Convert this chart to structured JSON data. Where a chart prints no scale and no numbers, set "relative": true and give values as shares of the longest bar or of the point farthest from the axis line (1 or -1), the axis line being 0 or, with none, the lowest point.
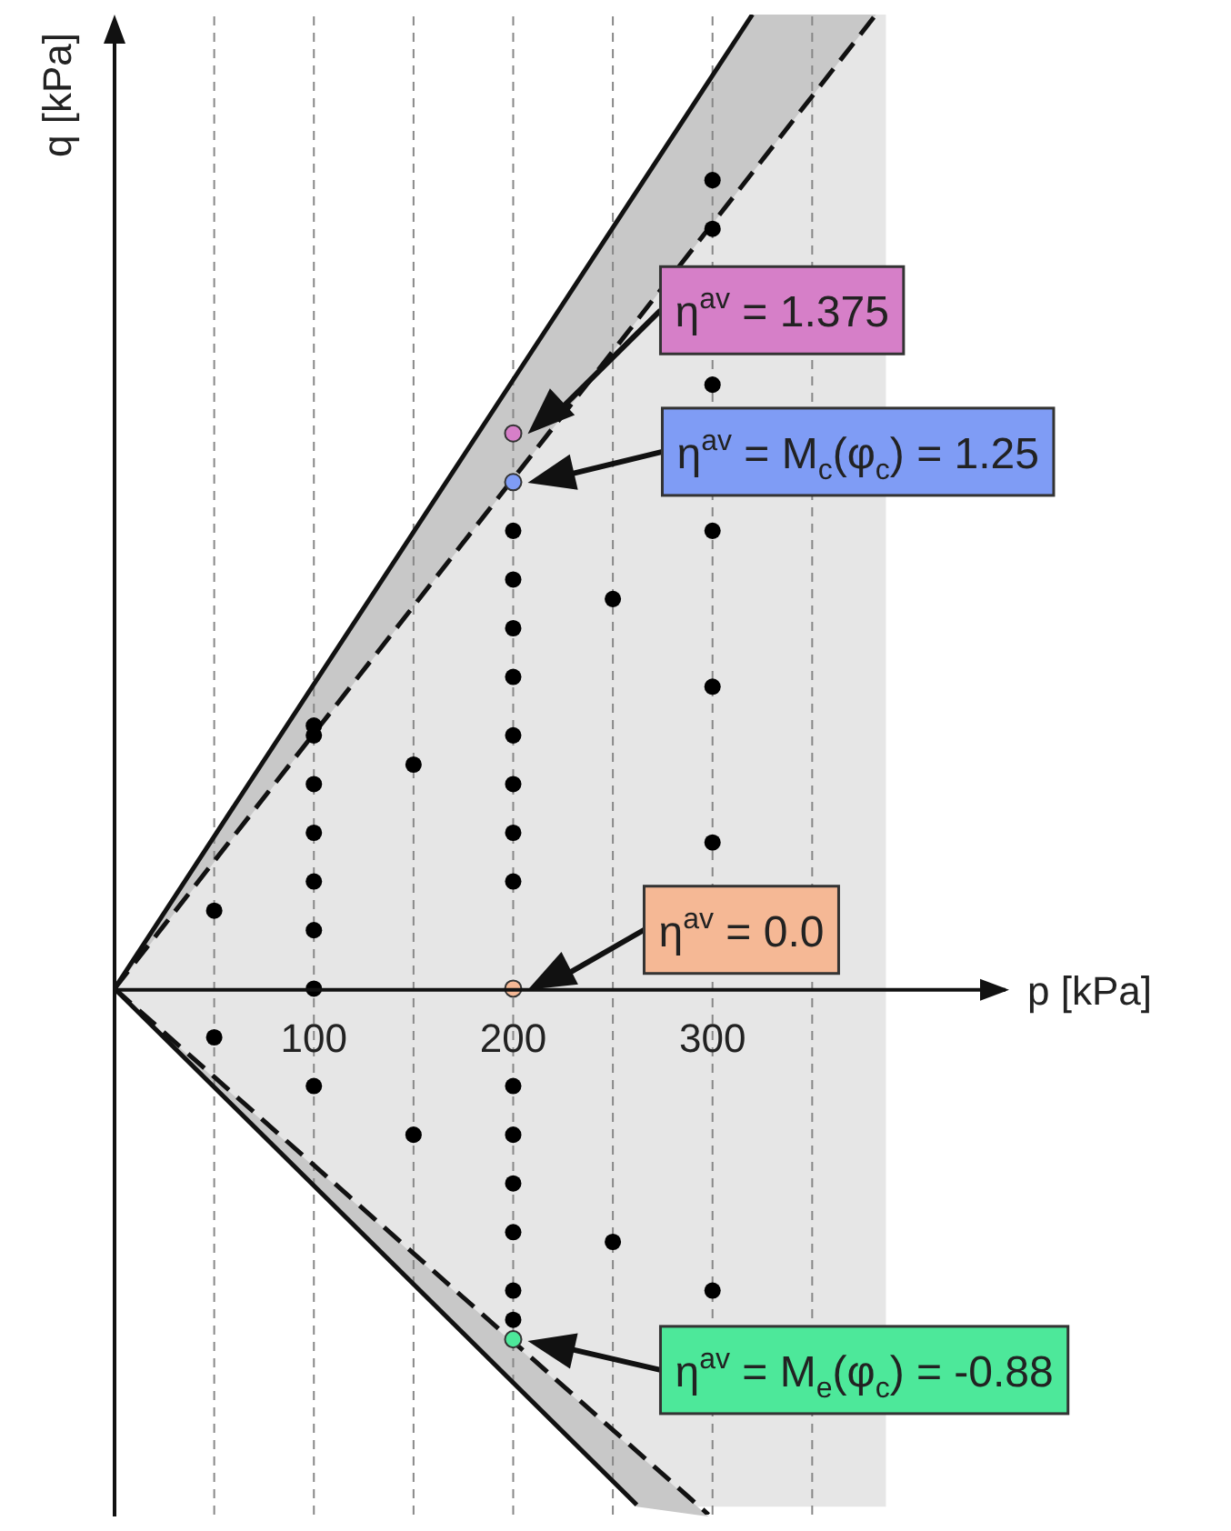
{
  "chart_data": {
    "type": "scatter",
    "relative": true,
    "xlabel": "p [kPa]",
    "ylabel": "q [kPa]",
    "xlim": [
      0,
      447
    ],
    "xticks": [
      100,
      200,
      300
    ],
    "bands": [
      {
        "axis": "x",
        "from": 0,
        "to": 387,
        "color": "#e6e6e6"
      }
    ],
    "ref_lines": [
      {
        "axis": "x",
        "value": 50,
        "color": "#888888",
        "line_style": "dashed"
      },
      {
        "axis": "x",
        "value": 100,
        "color": "#888888",
        "line_style": "dashed"
      },
      {
        "axis": "x",
        "value": 150,
        "color": "#888888",
        "line_style": "dashed"
      },
      {
        "axis": "x",
        "value": 200,
        "color": "#888888",
        "line_style": "dashed"
      },
      {
        "axis": "x",
        "value": 250,
        "color": "#888888",
        "line_style": "dashed"
      },
      {
        "axis": "x",
        "value": 300,
        "color": "#888888",
        "line_style": "dashed"
      },
      {
        "axis": "x",
        "value": 350,
        "color": "#888888",
        "line_style": "dashed"
      }
    ],
    "series": [
      {
        "type": "line",
        "color": "#111111",
        "line_style": "solid",
        "x": [
          0,
          320
        ],
        "values": [
          0,
          1
        ]
      },
      {
        "type": "line",
        "color": "#111111",
        "line_style": "solid",
        "x": [
          0,
          262
        ],
        "values": [
          0,
          -0.53
        ]
      },
      {
        "type": "line",
        "color": "#111111",
        "line_style": "dashed",
        "x": [
          0,
          382
        ],
        "values": [
          0,
          1
        ]
      },
      {
        "type": "line",
        "color": "#111111",
        "line_style": "dashed",
        "x": [
          0,
          298
        ],
        "values": [
          0,
          -0.54
        ]
      },
      {
        "marker": "circle",
        "color": "#000000",
        "x": [
          50,
          50,
          100,
          100,
          100,
          100,
          100,
          100,
          100,
          100,
          150,
          150,
          200,
          200,
          200,
          200,
          200,
          200,
          200,
          200,
          200,
          200,
          200,
          200,
          200,
          200,
          250,
          250,
          300,
          300,
          300,
          300,
          300,
          300,
          300
        ],
        "values": [
          0.08,
          -0.05,
          0.27,
          0.26,
          0.21,
          0.16,
          0.11,
          0.06,
          0,
          -0.1,
          0.23,
          -0.15,
          0.47,
          0.42,
          0.37,
          0.32,
          0.26,
          0.21,
          0.16,
          0.11,
          -0.1,
          -0.15,
          -0.2,
          -0.25,
          -0.31,
          -0.34,
          0.4,
          -0.26,
          0.83,
          0.78,
          0.62,
          0.47,
          0.31,
          0.15,
          -0.31
        ]
      },
      {
        "marker": "circle",
        "colors": [
          "#d67fc8",
          "#7f9cf5",
          "#f5b895",
          "#4de89a"
        ],
        "x": [
          200,
          200,
          200,
          200
        ],
        "values": [
          0.57,
          0.52,
          0,
          -0.36
        ]
      }
    ],
    "annotations": [
      "η$^{av}$ = 1.375",
      "η$^{av}$ = M$_{c}$(φ$_{c}$) = 1.25",
      "η$^{av}$ = 0.0",
      "η$^{av}$ = M$_{e}$(φ$_{c}$) = -0.88"
    ]
  }
}
